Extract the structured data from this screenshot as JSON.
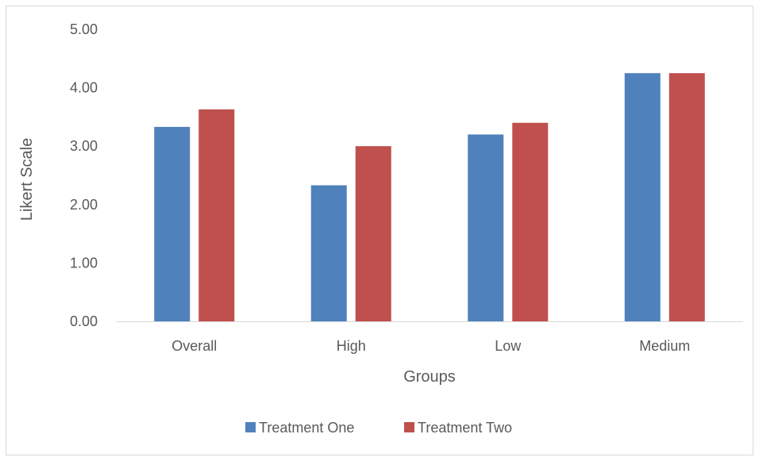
{
  "chart_data": {
    "type": "bar",
    "title": "",
    "xlabel": "Groups",
    "ylabel": "Likert Scale",
    "categories": [
      "Overall",
      "High",
      "Low",
      "Medium"
    ],
    "series": [
      {
        "name": "Treatment One",
        "values": [
          3.33,
          2.33,
          3.2,
          4.25
        ],
        "color": "#4f81bd"
      },
      {
        "name": "Treatment Two",
        "values": [
          3.63,
          3.0,
          3.4,
          4.25
        ],
        "color": "#c0504d"
      }
    ],
    "ylim": [
      0,
      5
    ],
    "yticks": [
      "0.00",
      "1.00",
      "2.00",
      "3.00",
      "4.00",
      "5.00"
    ],
    "grid": false,
    "legend_position": "bottom"
  }
}
